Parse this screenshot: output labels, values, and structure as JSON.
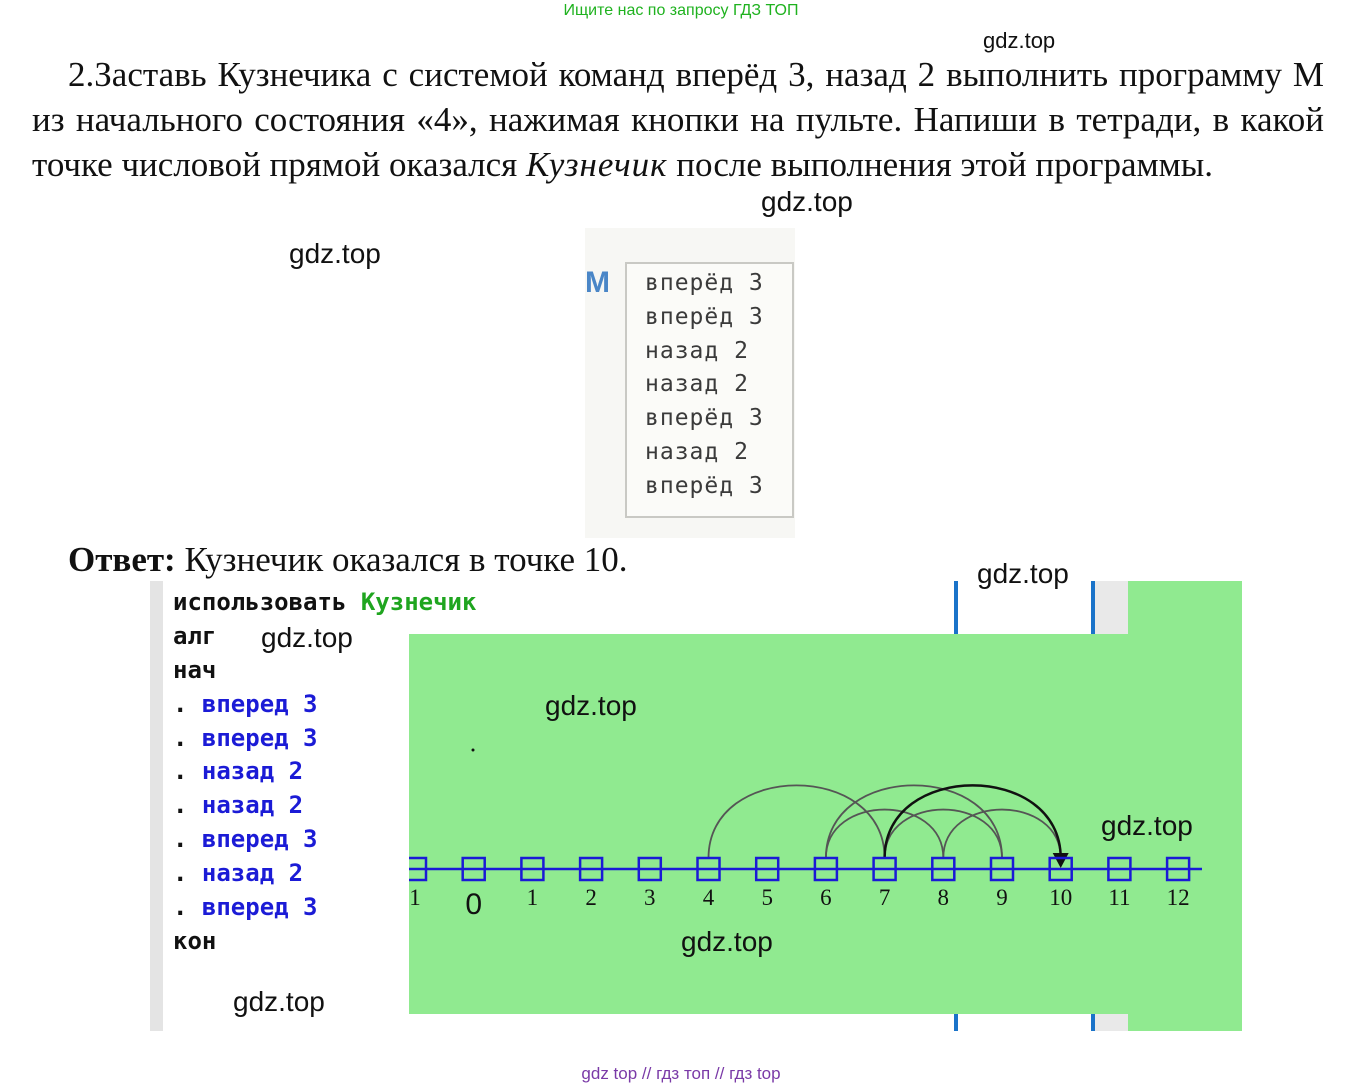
{
  "banner": "Ищите нас по запросу ГДЗ ТОП",
  "watermark": "gdz.top",
  "task": {
    "text_before": "2.Заставь Кузнечика с системой команд вперёд 3, назад 2 выполнить программу М из начального состояния «4», нажимая кнопки на пульте. Напиши в тетради, в какой точке числовой прямой оказался ",
    "italic": "Кузнечик",
    "text_after": " после выполнения этой программы."
  },
  "program": {
    "name": "M",
    "lines": [
      "вперёд 3",
      "вперёд 3",
      "назад 2",
      "назад 2",
      "вперёд 3",
      "назад 2",
      "вперёд 3"
    ]
  },
  "answer": {
    "label": "Ответ:",
    "text": " Кузнечик оказался в точке 10."
  },
  "editor": {
    "use": "использовать",
    "executor": "Кузнечик",
    "alg": "алг",
    "begin": "нач",
    "commands": [
      "вперед 3",
      "вперед 3",
      "назад 2",
      "назад 2",
      "вперед 3",
      "назад 2",
      "вперед 3"
    ],
    "end": "кон"
  },
  "number_line": {
    "labels": [
      "1",
      "0",
      "1",
      "2",
      "3",
      "4",
      "5",
      "6",
      "7",
      "8",
      "9",
      "10",
      "11",
      "12"
    ],
    "start": 4,
    "finish": 10,
    "jumps": [
      [
        4,
        7
      ],
      [
        7,
        10
      ],
      [
        10,
        8
      ],
      [
        8,
        6
      ],
      [
        6,
        9
      ],
      [
        9,
        7
      ],
      [
        7,
        10
      ]
    ]
  },
  "footer": "gdz top  //  гдз топ  //  гдз top",
  "colors": {
    "field": "#90ea90",
    "command": "#1b1bd6",
    "executor": "#1fa51f",
    "accent_line": "#1a73c9",
    "watermark_banner": "#1fb21f",
    "footer": "#7a3aa7"
  }
}
